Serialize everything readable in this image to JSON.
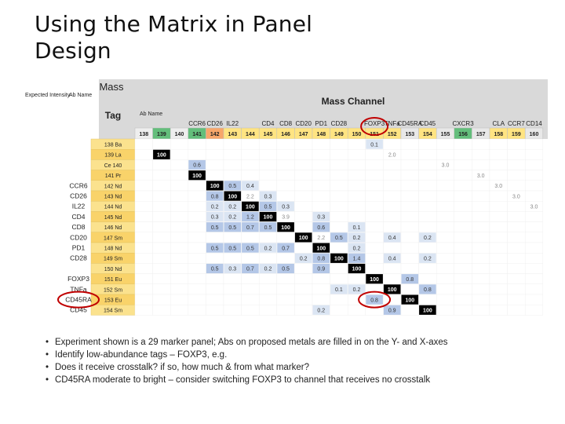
{
  "slide": {
    "title_line1": "Using the Matrix in Panel",
    "title_line2": "Design"
  },
  "matrix": {
    "header": {
      "mass_label": "Mass",
      "mass_channel_label": "Mass Channel",
      "tag_label": "Tag",
      "expected_intensity_label": "Expected Intensity",
      "ab_name_label": "Ab Name",
      "ab_name_label_top": "Ab Name"
    },
    "top_antibodies": [
      "",
      "",
      "",
      "CCR6",
      "CD26",
      "IL22",
      "",
      "CD4",
      "CD8",
      "CD20",
      "PD1",
      "CD28",
      "",
      "FOXP3",
      "TNFa",
      "CD45RA",
      "CD45",
      "",
      "CXCR3",
      "",
      "CLA",
      "CCR7",
      "CD14"
    ],
    "masses": [
      "138",
      "139",
      "140",
      "141",
      "142",
      "143",
      "144",
      "145",
      "146",
      "147",
      "148",
      "149",
      "150",
      "151",
      "152",
      "153",
      "154",
      "155",
      "156",
      "157",
      "158",
      "159",
      "160"
    ],
    "rows": [
      {
        "ab": "",
        "tag": "138 Ba"
      },
      {
        "ab": "",
        "tag": "139 La"
      },
      {
        "ab": "",
        "tag": "Ce 140"
      },
      {
        "ab": "",
        "tag": "141 Pr"
      },
      {
        "ab": "CCR6",
        "tag": "142 Nd"
      },
      {
        "ab": "CD26",
        "tag": "143 Nd"
      },
      {
        "ab": "IL22",
        "tag": "144 Nd"
      },
      {
        "ab": "CD4",
        "tag": "145 Nd"
      },
      {
        "ab": "CD8",
        "tag": "146 Nd"
      },
      {
        "ab": "CD20",
        "tag": "147 Sm"
      },
      {
        "ab": "PD1",
        "tag": "148 Nd"
      },
      {
        "ab": "CD28",
        "tag": "149 Sm"
      },
      {
        "ab": "",
        "tag": "150 Nd"
      },
      {
        "ab": "FOXP3",
        "tag": "151 Eu"
      },
      {
        "ab": "TNFa",
        "tag": "152 Sm"
      },
      {
        "ab": "CD45RA",
        "tag": "153 Eu"
      },
      {
        "ab": "CD45",
        "tag": "154 Sm"
      }
    ],
    "cells": [
      {
        "r": 0,
        "c": 13,
        "v": "0.1"
      },
      {
        "r": 1,
        "c": 1,
        "v": "100"
      },
      {
        "r": 1,
        "c": 14,
        "v": "2.0"
      },
      {
        "r": 2,
        "c": 3,
        "v": "0.6"
      },
      {
        "r": 2,
        "c": 17,
        "v": "3.0"
      },
      {
        "r": 3,
        "c": 3,
        "v": "100"
      },
      {
        "r": 3,
        "c": 19,
        "v": "3.0"
      },
      {
        "r": 4,
        "c": 4,
        "v": "100"
      },
      {
        "r": 4,
        "c": 5,
        "v": "0.5"
      },
      {
        "r": 4,
        "c": 6,
        "v": "0.4"
      },
      {
        "r": 4,
        "c": 20,
        "v": "3.0"
      },
      {
        "r": 5,
        "c": 4,
        "v": "0.8"
      },
      {
        "r": 5,
        "c": 5,
        "v": "100"
      },
      {
        "r": 5,
        "c": 6,
        "v": "2.2"
      },
      {
        "r": 5,
        "c": 7,
        "v": "0.3"
      },
      {
        "r": 5,
        "c": 21,
        "v": "3.0"
      },
      {
        "r": 6,
        "c": 4,
        "v": "0.2"
      },
      {
        "r": 6,
        "c": 5,
        "v": "0.2"
      },
      {
        "r": 6,
        "c": 6,
        "v": "100"
      },
      {
        "r": 6,
        "c": 7,
        "v": "0.5"
      },
      {
        "r": 6,
        "c": 8,
        "v": "0.3"
      },
      {
        "r": 6,
        "c": 22,
        "v": "3.0"
      },
      {
        "r": 7,
        "c": 4,
        "v": "0.3"
      },
      {
        "r": 7,
        "c": 5,
        "v": "0.2"
      },
      {
        "r": 7,
        "c": 6,
        "v": "1.2"
      },
      {
        "r": 7,
        "c": 7,
        "v": "100"
      },
      {
        "r": 7,
        "c": 8,
        "v": "3.9"
      },
      {
        "r": 7,
        "c": 10,
        "v": "0.3"
      },
      {
        "r": 8,
        "c": 4,
        "v": "0.5"
      },
      {
        "r": 8,
        "c": 5,
        "v": "0.5"
      },
      {
        "r": 8,
        "c": 6,
        "v": "0.7"
      },
      {
        "r": 8,
        "c": 7,
        "v": "0.5"
      },
      {
        "r": 8,
        "c": 8,
        "v": "100"
      },
      {
        "r": 8,
        "c": 10,
        "v": "0.6"
      },
      {
        "r": 8,
        "c": 12,
        "v": "0.1"
      },
      {
        "r": 9,
        "c": 9,
        "v": "100"
      },
      {
        "r": 9,
        "c": 10,
        "v": "2.2"
      },
      {
        "r": 9,
        "c": 11,
        "v": "0.5"
      },
      {
        "r": 9,
        "c": 12,
        "v": "0.2"
      },
      {
        "r": 9,
        "c": 14,
        "v": "0.4"
      },
      {
        "r": 9,
        "c": 16,
        "v": "0.2"
      },
      {
        "r": 10,
        "c": 4,
        "v": "0.5"
      },
      {
        "r": 10,
        "c": 5,
        "v": "0.5"
      },
      {
        "r": 10,
        "c": 6,
        "v": "0.5"
      },
      {
        "r": 10,
        "c": 7,
        "v": "0.2"
      },
      {
        "r": 10,
        "c": 8,
        "v": "0.7"
      },
      {
        "r": 10,
        "c": 10,
        "v": "100"
      },
      {
        "r": 10,
        "c": 12,
        "v": "0.2"
      },
      {
        "r": 11,
        "c": 9,
        "v": "0.2"
      },
      {
        "r": 11,
        "c": 10,
        "v": "0.8"
      },
      {
        "r": 11,
        "c": 11,
        "v": "100"
      },
      {
        "r": 11,
        "c": 12,
        "v": "1.4"
      },
      {
        "r": 11,
        "c": 14,
        "v": "0.4"
      },
      {
        "r": 11,
        "c": 16,
        "v": "0.2"
      },
      {
        "r": 12,
        "c": 4,
        "v": "0.5"
      },
      {
        "r": 12,
        "c": 5,
        "v": "0.3"
      },
      {
        "r": 12,
        "c": 6,
        "v": "0.7"
      },
      {
        "r": 12,
        "c": 7,
        "v": "0.2"
      },
      {
        "r": 12,
        "c": 8,
        "v": "0.5"
      },
      {
        "r": 12,
        "c": 10,
        "v": "0.9"
      },
      {
        "r": 12,
        "c": 12,
        "v": "100"
      },
      {
        "r": 13,
        "c": 13,
        "v": "100"
      },
      {
        "r": 13,
        "c": 15,
        "v": "0.8"
      },
      {
        "r": 14,
        "c": 11,
        "v": "0.1"
      },
      {
        "r": 14,
        "c": 12,
        "v": "0.2"
      },
      {
        "r": 14,
        "c": 14,
        "v": "100"
      },
      {
        "r": 14,
        "c": 16,
        "v": "0.8"
      },
      {
        "r": 15,
        "c": 13,
        "v": "0.8"
      },
      {
        "r": 15,
        "c": 15,
        "v": "100"
      },
      {
        "r": 16,
        "c": 10,
        "v": "0.2"
      },
      {
        "r": 16,
        "c": 14,
        "v": "0.9"
      },
      {
        "r": 16,
        "c": 16,
        "v": "100"
      }
    ]
  },
  "colors": {
    "header_bg": "#d9d9d9",
    "tag_col_bg": "#fbe28e",
    "tag_col_alt": "#f9d36a",
    "green": "#63be7b",
    "light_green": "#c6e0a0",
    "yellow": "#ffe482",
    "orange": "#f8a66a",
    "black_cell": "#000000",
    "blue_cell": "#b4c7e7",
    "light_blue_cell": "#dbe5f3",
    "circle": "#c00000"
  },
  "bullets": [
    "Experiment shown is a 29 marker panel; Abs on proposed metals are filled in on the Y- and X-axes",
    "Identify low-abundance tags – FOXP3, e.g.",
    "Does it receive crosstalk? if so, how much & from what marker?",
    "CD45RA moderate to bright – consider switching FOXP3 to channel that receives no crosstalk"
  ]
}
